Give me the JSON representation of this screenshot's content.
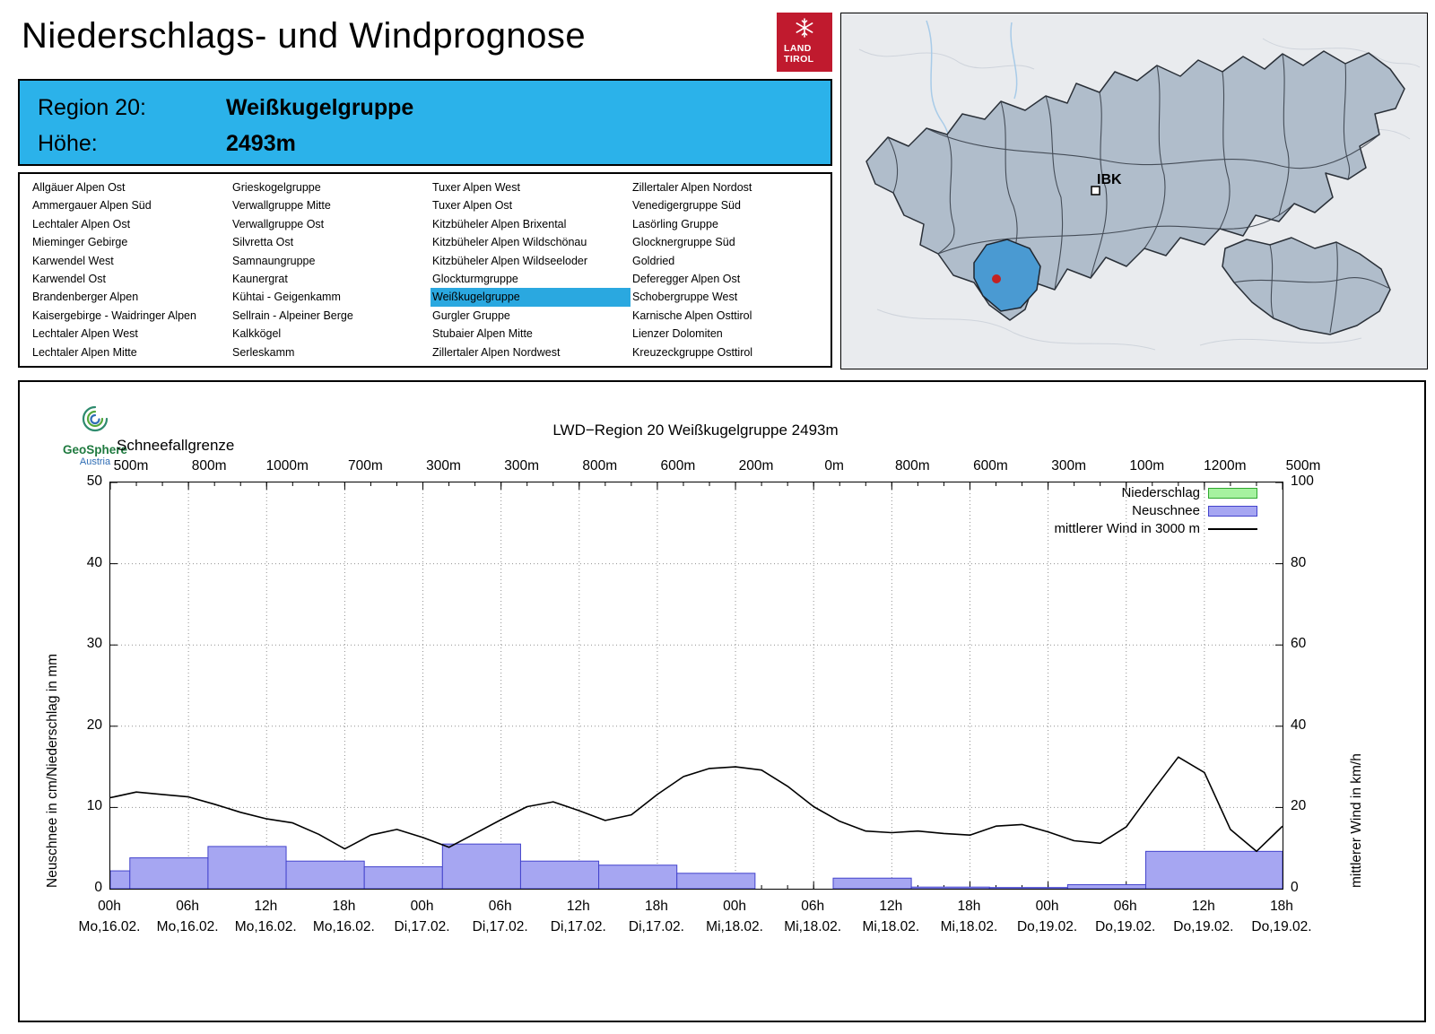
{
  "header": {
    "title": "Niederschlags- und Windprognose"
  },
  "logo": {
    "line1": "LAND",
    "line2": "TIROL"
  },
  "map": {
    "city_label": "IBK"
  },
  "region_info": {
    "region_label": "Region 20:",
    "region_value": "Weißkugelgruppe",
    "altitude_label": "Höhe:",
    "altitude_value": "2493m"
  },
  "region_list": {
    "selected": "Weißkugelgruppe",
    "columns": [
      [
        "Allgäuer Alpen Ost",
        "Ammergauer Alpen Süd",
        "Lechtaler Alpen Ost",
        "Mieminger Gebirge",
        "Karwendel West",
        "Karwendel Ost",
        "Brandenberger Alpen",
        "Kaisergebirge - Waidringer Alpen",
        "Lechtaler Alpen West",
        "Lechtaler Alpen Mitte"
      ],
      [
        "Grieskogelgruppe",
        "Verwallgruppe Mitte",
        "Verwallgruppe Ost",
        "Silvretta Ost",
        "Samnaungruppe",
        "Kaunergrat",
        "Kühtai - Geigenkamm",
        "Sellrain - Alpeiner Berge",
        "Kalkkögel",
        "Serleskamm"
      ],
      [
        "Tuxer Alpen West",
        "Tuxer Alpen Ost",
        "Kitzbüheler Alpen Brixental",
        "Kitzbüheler Alpen Wildschönau",
        "Kitzbüheler Alpen Wildseeloder",
        "Glockturmgruppe",
        "Weißkugelgruppe",
        "Gurgler Gruppe",
        "Stubaier Alpen Mitte",
        "Zillertaler Alpen Nordwest"
      ],
      [
        "Zillertaler Alpen Nordost",
        "Venedigergruppe Süd",
        "Lasörling Gruppe",
        "Glocknergruppe Süd",
        "Goldried",
        "Deferegger Alpen Ost",
        "Schobergruppe West",
        "Karnische Alpen Osttirol",
        "Lienzer Dolomiten",
        "Kreuzeckgruppe Osttirol"
      ]
    ]
  },
  "colors": {
    "accent_blue": "#2bb2ea",
    "list_highlight": "#2aa8e0",
    "logo_red": "#c01a2e",
    "snow_fill": "#a6a6f2",
    "snow_stroke": "#4343cc",
    "precip_fill": "#a6f2a0",
    "precip_stroke": "#2fa82f",
    "wind_line": "#000000",
    "map_region_fill": "#b0bdcb",
    "map_selected_fill": "#4a9ad2",
    "map_dot": "#c32222"
  },
  "chart_data": {
    "type": "bar+line",
    "title": "LWD−Region 20 Weißkugelgruppe 2493m",
    "source": {
      "line1": "GeoSphere",
      "line2": "Austria"
    },
    "snowline": {
      "label": "Schneefallgrenze",
      "values": [
        "500m",
        "800m",
        "1000m",
        "700m",
        "300m",
        "300m",
        "800m",
        "600m",
        "200m",
        "0m",
        "800m",
        "600m",
        "300m",
        "100m",
        "1200m",
        "500m"
      ]
    },
    "x_range": [
      0,
      90
    ],
    "x_ticks": [
      {
        "hour": 0,
        "time": "00h",
        "date": "Mo,16.02."
      },
      {
        "hour": 6,
        "time": "06h",
        "date": "Mo,16.02."
      },
      {
        "hour": 12,
        "time": "12h",
        "date": "Mo,16.02."
      },
      {
        "hour": 18,
        "time": "18h",
        "date": "Mo,16.02."
      },
      {
        "hour": 24,
        "time": "00h",
        "date": "Di,17.02."
      },
      {
        "hour": 30,
        "time": "06h",
        "date": "Di,17.02."
      },
      {
        "hour": 36,
        "time": "12h",
        "date": "Di,17.02."
      },
      {
        "hour": 42,
        "time": "18h",
        "date": "Di,17.02."
      },
      {
        "hour": 48,
        "time": "00h",
        "date": "Mi,18.02."
      },
      {
        "hour": 54,
        "time": "06h",
        "date": "Mi,18.02."
      },
      {
        "hour": 60,
        "time": "12h",
        "date": "Mi,18.02."
      },
      {
        "hour": 66,
        "time": "18h",
        "date": "Mi,18.02."
      },
      {
        "hour": 72,
        "time": "00h",
        "date": "Do,19.02."
      },
      {
        "hour": 78,
        "time": "06h",
        "date": "Do,19.02."
      },
      {
        "hour": 84,
        "time": "12h",
        "date": "Do,19.02."
      },
      {
        "hour": 90,
        "time": "18h",
        "date": "Do,19.02."
      }
    ],
    "left_axis": {
      "label": "Neuschnee in cm/Niederschlag in mm",
      "min": 0,
      "max": 50,
      "ticks": [
        0,
        10,
        20,
        30,
        40,
        50
      ]
    },
    "right_axis": {
      "label": "mittlerer Wind in km/h",
      "min": 0,
      "max": 100,
      "ticks": [
        0,
        20,
        40,
        60,
        80,
        100
      ]
    },
    "legend": [
      {
        "label": "Niederschlag",
        "swatch": "box",
        "color_key": "precip"
      },
      {
        "label": "Neuschnee",
        "swatch": "box",
        "color_key": "snow"
      },
      {
        "label": "mittlerer Wind in 3000 m",
        "swatch": "line",
        "color_key": "wind"
      }
    ],
    "series": [
      {
        "name": "Niederschlag",
        "type": "bar",
        "unit": "mm",
        "axis": "left",
        "bars": []
      },
      {
        "name": "Neuschnee",
        "type": "bar",
        "unit": "cm",
        "axis": "left",
        "bars": [
          {
            "start": 0,
            "end": 1.5,
            "value": 2.2
          },
          {
            "start": 1.5,
            "end": 7.5,
            "value": 3.8
          },
          {
            "start": 7.5,
            "end": 13.5,
            "value": 5.2
          },
          {
            "start": 13.5,
            "end": 19.5,
            "value": 3.4
          },
          {
            "start": 19.5,
            "end": 25.5,
            "value": 2.7
          },
          {
            "start": 25.5,
            "end": 31.5,
            "value": 5.5
          },
          {
            "start": 31.5,
            "end": 37.5,
            "value": 3.4
          },
          {
            "start": 37.5,
            "end": 43.5,
            "value": 2.9
          },
          {
            "start": 43.5,
            "end": 49.5,
            "value": 1.9
          },
          {
            "start": 55.5,
            "end": 61.5,
            "value": 1.3
          },
          {
            "start": 61.5,
            "end": 67.5,
            "value": 0.2
          },
          {
            "start": 67.5,
            "end": 73.5,
            "value": 0.15
          },
          {
            "start": 73.5,
            "end": 79.5,
            "value": 0.5
          },
          {
            "start": 79.5,
            "end": 90,
            "value": 4.6
          }
        ]
      },
      {
        "name": "mittlerer Wind in 3000 m",
        "type": "line",
        "unit": "km/h",
        "axis": "right",
        "points": [
          [
            0,
            22.4
          ],
          [
            2,
            23.8
          ],
          [
            4,
            23.2
          ],
          [
            6,
            22.6
          ],
          [
            8,
            20.8
          ],
          [
            10,
            18.8
          ],
          [
            12,
            17.2
          ],
          [
            14,
            16.2
          ],
          [
            16,
            13.4
          ],
          [
            18,
            9.8
          ],
          [
            20,
            13.2
          ],
          [
            22,
            14.6
          ],
          [
            24,
            12.6
          ],
          [
            26,
            10.2
          ],
          [
            28,
            13.6
          ],
          [
            30,
            17.0
          ],
          [
            32,
            20.2
          ],
          [
            34,
            21.4
          ],
          [
            36,
            19.2
          ],
          [
            38,
            16.8
          ],
          [
            40,
            18.2
          ],
          [
            42,
            23.2
          ],
          [
            44,
            27.6
          ],
          [
            46,
            29.6
          ],
          [
            48,
            30.0
          ],
          [
            50,
            29.2
          ],
          [
            52,
            25.2
          ],
          [
            54,
            20.2
          ],
          [
            56,
            16.6
          ],
          [
            58,
            14.2
          ],
          [
            60,
            13.8
          ],
          [
            62,
            14.2
          ],
          [
            64,
            13.6
          ],
          [
            66,
            13.2
          ],
          [
            68,
            15.4
          ],
          [
            70,
            15.8
          ],
          [
            72,
            14.0
          ],
          [
            74,
            11.8
          ],
          [
            76,
            11.2
          ],
          [
            78,
            15.2
          ],
          [
            80,
            24.0
          ],
          [
            82,
            32.4
          ],
          [
            84,
            28.6
          ],
          [
            86,
            14.6
          ],
          [
            88,
            9.2
          ],
          [
            90,
            15.4
          ]
        ]
      }
    ]
  }
}
